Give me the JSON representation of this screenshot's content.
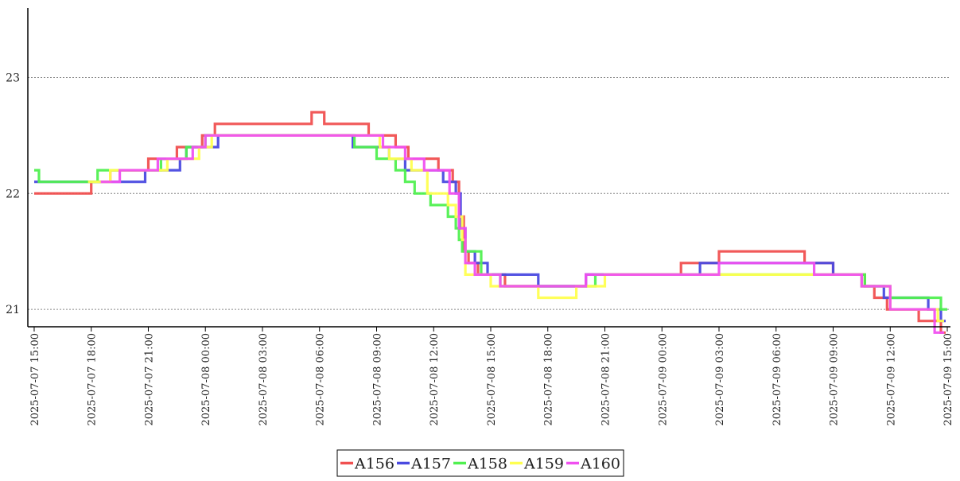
{
  "chart_data": {
    "type": "line",
    "step": true,
    "grid": {
      "y": true,
      "x": false,
      "style": "dotted"
    },
    "legend": "bottom-center",
    "ylim": [
      20.85,
      23.6
    ],
    "yticks": [
      21,
      22,
      23
    ],
    "xlim": [
      "2025-07-07 14:40",
      "2025-07-09 15:10"
    ],
    "xticks": [
      "2025-07-07 15:00",
      "2025-07-07 18:00",
      "2025-07-07 21:00",
      "2025-07-08 00:00",
      "2025-07-08 03:00",
      "2025-07-08 06:00",
      "2025-07-08 09:00",
      "2025-07-08 12:00",
      "2025-07-08 15:00",
      "2025-07-08 18:00",
      "2025-07-08 21:00",
      "2025-07-09 00:00",
      "2025-07-09 03:00",
      "2025-07-09 06:00",
      "2025-07-09 09:00",
      "2025-07-09 12:00",
      "2025-07-09 15:00"
    ],
    "series": [
      {
        "name": "A156",
        "color": "#f05050",
        "points": [
          [
            "2025-07-07 15:00",
            22.0
          ],
          [
            "2025-07-07 18:00",
            22.1
          ],
          [
            "2025-07-07 19:00",
            22.2
          ],
          [
            "2025-07-07 21:00",
            22.3
          ],
          [
            "2025-07-07 22:30",
            22.4
          ],
          [
            "2025-07-07 23:50",
            22.5
          ],
          [
            "2025-07-08 00:30",
            22.6
          ],
          [
            "2025-07-08 05:35",
            22.7
          ],
          [
            "2025-07-08 06:15",
            22.6
          ],
          [
            "2025-07-08 08:35",
            22.5
          ],
          [
            "2025-07-08 10:00",
            22.4
          ],
          [
            "2025-07-08 10:40",
            22.3
          ],
          [
            "2025-07-08 12:15",
            22.2
          ],
          [
            "2025-07-08 13:00",
            22.1
          ],
          [
            "2025-07-08 13:20",
            21.8
          ],
          [
            "2025-07-08 13:35",
            21.5
          ],
          [
            "2025-07-08 13:50",
            21.4
          ],
          [
            "2025-07-08 14:20",
            21.3
          ],
          [
            "2025-07-08 15:45",
            21.2
          ],
          [
            "2025-07-08 20:00",
            21.3
          ],
          [
            "2025-07-09 01:00",
            21.4
          ],
          [
            "2025-07-09 03:00",
            21.5
          ],
          [
            "2025-07-09 07:30",
            21.4
          ],
          [
            "2025-07-09 09:00",
            21.3
          ],
          [
            "2025-07-09 10:40",
            21.2
          ],
          [
            "2025-07-09 11:10",
            21.1
          ],
          [
            "2025-07-09 11:50",
            21.0
          ],
          [
            "2025-07-09 13:30",
            20.9
          ],
          [
            "2025-07-09 14:40",
            20.8
          ],
          [
            "2025-07-09 14:55",
            20.8
          ]
        ]
      },
      {
        "name": "A157",
        "color": "#4a4ae0",
        "points": [
          [
            "2025-07-07 15:00",
            22.1
          ],
          [
            "2025-07-07 20:50",
            22.2
          ],
          [
            "2025-07-07 21:30",
            22.2
          ],
          [
            "2025-07-07 22:40",
            22.3
          ],
          [
            "2025-07-07 23:00",
            22.4
          ],
          [
            "2025-07-08 00:40",
            22.5
          ],
          [
            "2025-07-08 07:45",
            22.4
          ],
          [
            "2025-07-08 09:40",
            22.3
          ],
          [
            "2025-07-08 10:30",
            22.2
          ],
          [
            "2025-07-08 12:30",
            22.1
          ],
          [
            "2025-07-08 13:10",
            22.0
          ],
          [
            "2025-07-08 13:25",
            21.7
          ],
          [
            "2025-07-08 13:40",
            21.5
          ],
          [
            "2025-07-08 14:10",
            21.4
          ],
          [
            "2025-07-08 14:50",
            21.3
          ],
          [
            "2025-07-08 17:30",
            21.2
          ],
          [
            "2025-07-08 20:00",
            21.3
          ],
          [
            "2025-07-09 02:00",
            21.4
          ],
          [
            "2025-07-09 09:00",
            21.3
          ],
          [
            "2025-07-09 10:30",
            21.2
          ],
          [
            "2025-07-09 11:40",
            21.1
          ],
          [
            "2025-07-09 14:00",
            21.0
          ],
          [
            "2025-07-09 14:40",
            20.9
          ],
          [
            "2025-07-09 14:55",
            20.9
          ]
        ]
      },
      {
        "name": "A158",
        "color": "#50f050",
        "points": [
          [
            "2025-07-07 15:00",
            22.2
          ],
          [
            "2025-07-07 15:15",
            22.1
          ],
          [
            "2025-07-07 18:20",
            22.2
          ],
          [
            "2025-07-07 21:10",
            22.2
          ],
          [
            "2025-07-07 21:40",
            22.3
          ],
          [
            "2025-07-07 23:00",
            22.4
          ],
          [
            "2025-07-08 00:00",
            22.5
          ],
          [
            "2025-07-08 07:50",
            22.4
          ],
          [
            "2025-07-08 09:00",
            22.3
          ],
          [
            "2025-07-08 10:00",
            22.2
          ],
          [
            "2025-07-08 10:30",
            22.1
          ],
          [
            "2025-07-08 11:00",
            22.0
          ],
          [
            "2025-07-08 11:50",
            21.9
          ],
          [
            "2025-07-08 12:45",
            21.8
          ],
          [
            "2025-07-08 13:10",
            21.7
          ],
          [
            "2025-07-08 13:20",
            21.6
          ],
          [
            "2025-07-08 13:30",
            21.5
          ],
          [
            "2025-07-08 14:30",
            21.3
          ],
          [
            "2025-07-08 15:30",
            21.2
          ],
          [
            "2025-07-08 20:30",
            21.3
          ],
          [
            "2025-07-09 01:00",
            21.3
          ],
          [
            "2025-07-09 10:00",
            21.3
          ],
          [
            "2025-07-09 10:40",
            21.2
          ],
          [
            "2025-07-09 12:00",
            21.1
          ],
          [
            "2025-07-09 14:40",
            21.0
          ],
          [
            "2025-07-09 15:00",
            21.0
          ]
        ]
      },
      {
        "name": "A159",
        "color": "#ffff50",
        "points": [
          [
            "2025-07-07 17:50",
            22.1
          ],
          [
            "2025-07-07 19:00",
            22.2
          ],
          [
            "2025-07-07 22:00",
            22.3
          ],
          [
            "2025-07-07 23:40",
            22.4
          ],
          [
            "2025-07-08 00:20",
            22.5
          ],
          [
            "2025-07-08 09:10",
            22.4
          ],
          [
            "2025-07-08 09:40",
            22.3
          ],
          [
            "2025-07-08 10:50",
            22.2
          ],
          [
            "2025-07-08 11:40",
            22.0
          ],
          [
            "2025-07-08 12:45",
            21.9
          ],
          [
            "2025-07-08 13:10",
            21.8
          ],
          [
            "2025-07-08 13:30",
            21.6
          ],
          [
            "2025-07-08 13:40",
            21.3
          ],
          [
            "2025-07-08 15:00",
            21.2
          ],
          [
            "2025-07-08 17:30",
            21.1
          ],
          [
            "2025-07-08 19:30",
            21.2
          ],
          [
            "2025-07-08 21:00",
            21.3
          ],
          [
            "2025-07-09 02:00",
            21.3
          ],
          [
            "2025-07-09 09:00",
            21.3
          ],
          [
            "2025-07-09 10:30",
            21.2
          ],
          [
            "2025-07-09 12:00",
            21.0
          ],
          [
            "2025-07-09 14:30",
            20.9
          ],
          [
            "2025-07-09 14:50",
            20.9
          ]
        ]
      },
      {
        "name": "A160",
        "color": "#f050f0",
        "points": [
          [
            "2025-07-07 18:30",
            22.1
          ],
          [
            "2025-07-07 19:30",
            22.2
          ],
          [
            "2025-07-07 21:30",
            22.3
          ],
          [
            "2025-07-07 23:20",
            22.4
          ],
          [
            "2025-07-08 00:00",
            22.5
          ],
          [
            "2025-07-08 09:20",
            22.4
          ],
          [
            "2025-07-08 10:30",
            22.3
          ],
          [
            "2025-07-08 11:30",
            22.2
          ],
          [
            "2025-07-08 12:50",
            22.0
          ],
          [
            "2025-07-08 13:20",
            21.7
          ],
          [
            "2025-07-08 13:40",
            21.4
          ],
          [
            "2025-07-08 14:10",
            21.3
          ],
          [
            "2025-07-08 15:30",
            21.2
          ],
          [
            "2025-07-08 20:00",
            21.3
          ],
          [
            "2025-07-09 03:00",
            21.4
          ],
          [
            "2025-07-09 08:00",
            21.3
          ],
          [
            "2025-07-09 10:30",
            21.2
          ],
          [
            "2025-07-09 12:00",
            21.0
          ],
          [
            "2025-07-09 14:20",
            20.8
          ],
          [
            "2025-07-09 14:50",
            20.8
          ]
        ]
      }
    ]
  }
}
